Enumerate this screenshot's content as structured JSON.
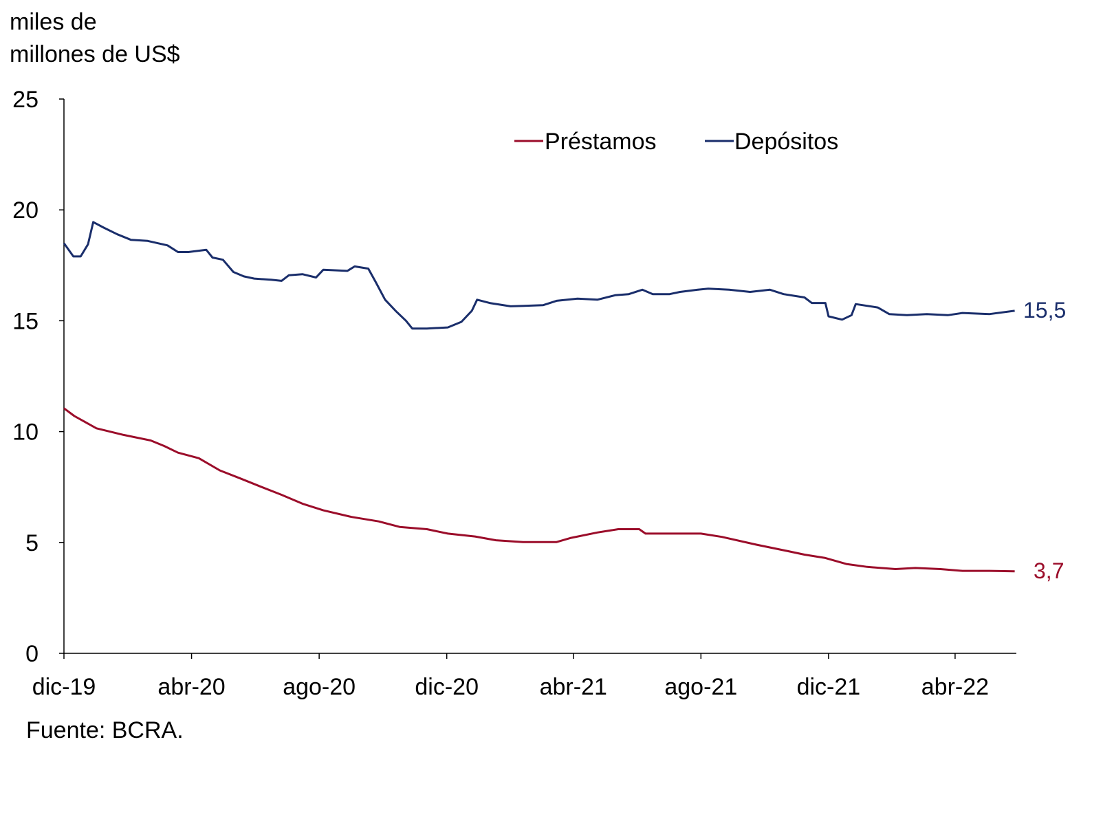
{
  "chart_data": {
    "type": "line",
    "ylabel": "miles de millones de US$",
    "ylabel_lines": [
      "miles de",
      "millones de US$"
    ],
    "ylim": [
      0,
      25
    ],
    "yticks": [
      "0",
      "5",
      "10",
      "15",
      "20",
      "25"
    ],
    "xlim": [
      "2019-12-01",
      "2022-05-28"
    ],
    "xticks": [
      {
        "label": "dic-19",
        "date": "2019-12-01"
      },
      {
        "label": "abr-20",
        "date": "2020-04-01"
      },
      {
        "label": "ago-20",
        "date": "2020-08-01"
      },
      {
        "label": "dic-20",
        "date": "2020-12-01"
      },
      {
        "label": "abr-21",
        "date": "2021-04-01"
      },
      {
        "label": "ago-21",
        "date": "2021-08-01"
      },
      {
        "label": "dic-21",
        "date": "2021-12-01"
      },
      {
        "label": "abr-22",
        "date": "2022-04-01"
      }
    ],
    "grid": false,
    "legend_position": "top-right",
    "source": "Fuente: BCRA.",
    "series": [
      {
        "name": "Préstamos",
        "color": "#9b0d2a",
        "end_label": "3,7",
        "points": [
          [
            "2019-12-01",
            11.05
          ],
          [
            "2019-12-11",
            10.7
          ],
          [
            "2020-01-01",
            10.15
          ],
          [
            "2020-01-27",
            9.85
          ],
          [
            "2020-02-22",
            9.6
          ],
          [
            "2020-03-06",
            9.35
          ],
          [
            "2020-03-19",
            9.05
          ],
          [
            "2020-04-08",
            8.8
          ],
          [
            "2020-04-28",
            8.25
          ],
          [
            "2020-05-17",
            7.9
          ],
          [
            "2020-06-07",
            7.5
          ],
          [
            "2020-06-26",
            7.15
          ],
          [
            "2020-07-16",
            6.75
          ],
          [
            "2020-08-05",
            6.45
          ],
          [
            "2020-09-01",
            6.15
          ],
          [
            "2020-09-27",
            5.95
          ],
          [
            "2020-10-17",
            5.7
          ],
          [
            "2020-11-12",
            5.6
          ],
          [
            "2020-12-02",
            5.4
          ],
          [
            "2020-12-28",
            5.27
          ],
          [
            "2021-01-17",
            5.1
          ],
          [
            "2021-02-12",
            5.02
          ],
          [
            "2021-03-16",
            5.02
          ],
          [
            "2021-03-29",
            5.2
          ],
          [
            "2021-04-24",
            5.45
          ],
          [
            "2021-05-14",
            5.6
          ],
          [
            "2021-06-03",
            5.6
          ],
          [
            "2021-06-09",
            5.4
          ],
          [
            "2021-07-05",
            5.4
          ],
          [
            "2021-08-01",
            5.4
          ],
          [
            "2021-08-21",
            5.25
          ],
          [
            "2021-09-23",
            4.9
          ],
          [
            "2021-10-19",
            4.65
          ],
          [
            "2021-11-08",
            4.45
          ],
          [
            "2021-11-28",
            4.3
          ],
          [
            "2021-12-18",
            4.03
          ],
          [
            "2022-01-07",
            3.9
          ],
          [
            "2022-02-03",
            3.8
          ],
          [
            "2022-02-22",
            3.85
          ],
          [
            "2022-03-18",
            3.8
          ],
          [
            "2022-04-08",
            3.72
          ],
          [
            "2022-05-04",
            3.72
          ],
          [
            "2022-05-28",
            3.7
          ]
        ]
      },
      {
        "name": "Depósitos",
        "color": "#1a2e6b",
        "end_label": "15,5",
        "points": [
          [
            "2019-12-01",
            18.5
          ],
          [
            "2019-12-10",
            17.9
          ],
          [
            "2019-12-17",
            17.9
          ],
          [
            "2019-12-24",
            18.45
          ],
          [
            "2019-12-29",
            19.45
          ],
          [
            "2020-01-08",
            19.2
          ],
          [
            "2020-01-21",
            18.9
          ],
          [
            "2020-02-03",
            18.65
          ],
          [
            "2020-02-19",
            18.6
          ],
          [
            "2020-03-09",
            18.4
          ],
          [
            "2020-03-19",
            18.1
          ],
          [
            "2020-03-29",
            18.1
          ],
          [
            "2020-04-15",
            18.2
          ],
          [
            "2020-04-21",
            17.85
          ],
          [
            "2020-05-01",
            17.75
          ],
          [
            "2020-05-11",
            17.2
          ],
          [
            "2020-05-21",
            17.0
          ],
          [
            "2020-05-31",
            16.9
          ],
          [
            "2020-06-16",
            16.85
          ],
          [
            "2020-06-26",
            16.8
          ],
          [
            "2020-07-03",
            17.05
          ],
          [
            "2020-07-16",
            17.1
          ],
          [
            "2020-07-29",
            16.95
          ],
          [
            "2020-08-05",
            17.3
          ],
          [
            "2020-08-28",
            17.25
          ],
          [
            "2020-09-04",
            17.45
          ],
          [
            "2020-09-17",
            17.35
          ],
          [
            "2020-09-24",
            16.75
          ],
          [
            "2020-10-03",
            15.95
          ],
          [
            "2020-10-13",
            15.45
          ],
          [
            "2020-10-23",
            15.0
          ],
          [
            "2020-10-29",
            14.65
          ],
          [
            "2020-11-12",
            14.65
          ],
          [
            "2020-12-02",
            14.7
          ],
          [
            "2020-12-15",
            14.95
          ],
          [
            "2020-12-25",
            15.45
          ],
          [
            "2020-12-30",
            15.95
          ],
          [
            "2021-01-11",
            15.8
          ],
          [
            "2021-01-31",
            15.65
          ],
          [
            "2021-03-03",
            15.7
          ],
          [
            "2021-03-16",
            15.9
          ],
          [
            "2021-04-05",
            16.0
          ],
          [
            "2021-04-24",
            15.95
          ],
          [
            "2021-05-11",
            16.15
          ],
          [
            "2021-05-24",
            16.2
          ],
          [
            "2021-06-06",
            16.4
          ],
          [
            "2021-06-16",
            16.2
          ],
          [
            "2021-07-02",
            16.2
          ],
          [
            "2021-07-12",
            16.3
          ],
          [
            "2021-07-29",
            16.4
          ],
          [
            "2021-08-08",
            16.45
          ],
          [
            "2021-08-28",
            16.4
          ],
          [
            "2021-09-17",
            16.3
          ],
          [
            "2021-10-06",
            16.4
          ],
          [
            "2021-10-19",
            16.2
          ],
          [
            "2021-11-08",
            16.05
          ],
          [
            "2021-11-15",
            15.8
          ],
          [
            "2021-11-28",
            15.8
          ],
          [
            "2021-12-01",
            15.2
          ],
          [
            "2021-12-14",
            15.05
          ],
          [
            "2021-12-23",
            15.25
          ],
          [
            "2021-12-27",
            15.75
          ],
          [
            "2022-01-17",
            15.6
          ],
          [
            "2022-01-28",
            15.3
          ],
          [
            "2022-02-14",
            15.25
          ],
          [
            "2022-03-05",
            15.3
          ],
          [
            "2022-03-25",
            15.25
          ],
          [
            "2022-04-08",
            15.35
          ],
          [
            "2022-05-04",
            15.3
          ],
          [
            "2022-05-28",
            15.45
          ]
        ]
      }
    ]
  }
}
